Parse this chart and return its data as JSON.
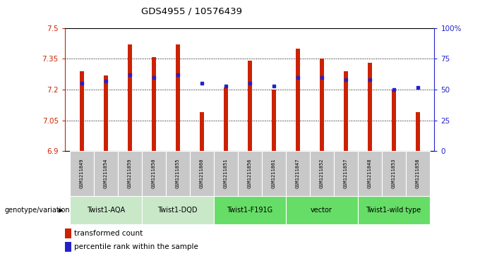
{
  "title": "GDS4955 / 10576439",
  "samples": [
    "GSM1211849",
    "GSM1211854",
    "GSM1211859",
    "GSM1211850",
    "GSM1211855",
    "GSM1211860",
    "GSM1211851",
    "GSM1211856",
    "GSM1211861",
    "GSM1211847",
    "GSM1211852",
    "GSM1211857",
    "GSM1211848",
    "GSM1211853",
    "GSM1211858"
  ],
  "bar_values": [
    7.29,
    7.27,
    7.42,
    7.36,
    7.42,
    7.09,
    7.21,
    7.34,
    7.2,
    7.4,
    7.35,
    7.29,
    7.33,
    7.2,
    7.09
  ],
  "dot_values": [
    55,
    57,
    62,
    60,
    62,
    55,
    53,
    55,
    53,
    60,
    60,
    58,
    58,
    50,
    52
  ],
  "ylim": [
    6.9,
    7.5
  ],
  "yticks": [
    6.9,
    7.05,
    7.2,
    7.35,
    7.5
  ],
  "ytick_labels": [
    "6.9",
    "7.05",
    "7.2",
    "7.35",
    "7.5"
  ],
  "y2lim": [
    0,
    100
  ],
  "y2ticks": [
    0,
    25,
    50,
    75,
    100
  ],
  "y2tick_labels": [
    "0",
    "25",
    "50",
    "75",
    "100%"
  ],
  "bar_color": "#CC2200",
  "dot_color": "#2222CC",
  "groups": [
    {
      "label": "Twist1-AQA",
      "start": 0,
      "end": 3,
      "color": "#C8E8C8"
    },
    {
      "label": "Twist1-DQD",
      "start": 3,
      "end": 6,
      "color": "#C8E8C8"
    },
    {
      "label": "Twist1-F191G",
      "start": 6,
      "end": 9,
      "color": "#66DD66"
    },
    {
      "label": "vector",
      "start": 9,
      "end": 12,
      "color": "#66DD66"
    },
    {
      "label": "Twist1-wild type",
      "start": 12,
      "end": 15,
      "color": "#66DD66"
    }
  ],
  "legend_bar_label": "transformed count",
  "legend_dot_label": "percentile rank within the sample",
  "genotype_label": "genotype/variation",
  "bar_baseline": 6.9,
  "left_axis_color": "#CC2200",
  "right_axis_color": "#2222CC",
  "sample_box_color": "#C8C8C8"
}
